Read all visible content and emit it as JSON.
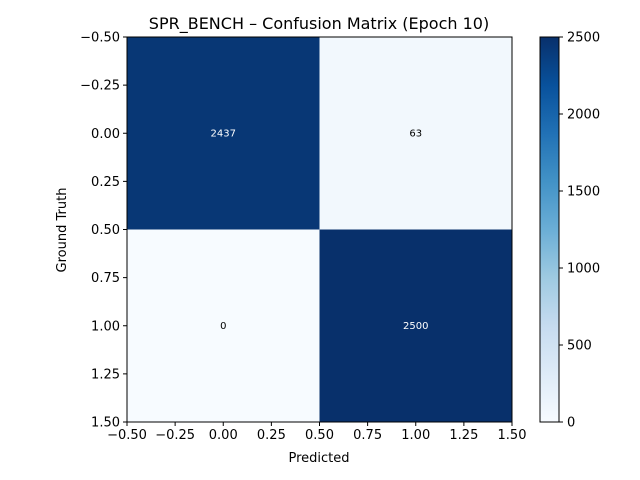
{
  "chart_data": {
    "type": "heatmap",
    "title": "SPR_BENCH – Confusion Matrix (Epoch 10)",
    "xlabel": "Predicted",
    "ylabel": "Ground Truth",
    "matrix": [
      [
        2437,
        63
      ],
      [
        0,
        2500
      ]
    ],
    "xlim": [
      -0.5,
      1.5
    ],
    "ylim": [
      1.5,
      -0.5
    ],
    "x_ticks": [
      -0.5,
      -0.25,
      0.0,
      0.25,
      0.5,
      0.75,
      1.0,
      1.25,
      1.5
    ],
    "x_tick_labels": [
      "−0.50",
      "−0.25",
      "0.00",
      "0.25",
      "0.50",
      "0.75",
      "1.00",
      "1.25",
      "1.50"
    ],
    "y_ticks": [
      -0.5,
      -0.25,
      0.0,
      0.25,
      0.5,
      0.75,
      1.0,
      1.25,
      1.5
    ],
    "y_tick_labels": [
      "−0.50",
      "−0.25",
      "0.00",
      "0.25",
      "0.50",
      "0.75",
      "1.00",
      "1.25",
      "1.50"
    ],
    "colorbar": {
      "colormap": "Blues",
      "range": [
        0,
        2500
      ],
      "ticks": [
        0,
        500,
        1000,
        1500,
        2000,
        2500
      ],
      "tick_labels": [
        "0",
        "500",
        "1000",
        "1500",
        "2000",
        "2500"
      ]
    },
    "colors": {
      "low": "#f7fbff",
      "high": "#08306b",
      "annotation_on_dark": "#ffffff",
      "annotation_on_light": "#000000"
    },
    "grid": false
  }
}
